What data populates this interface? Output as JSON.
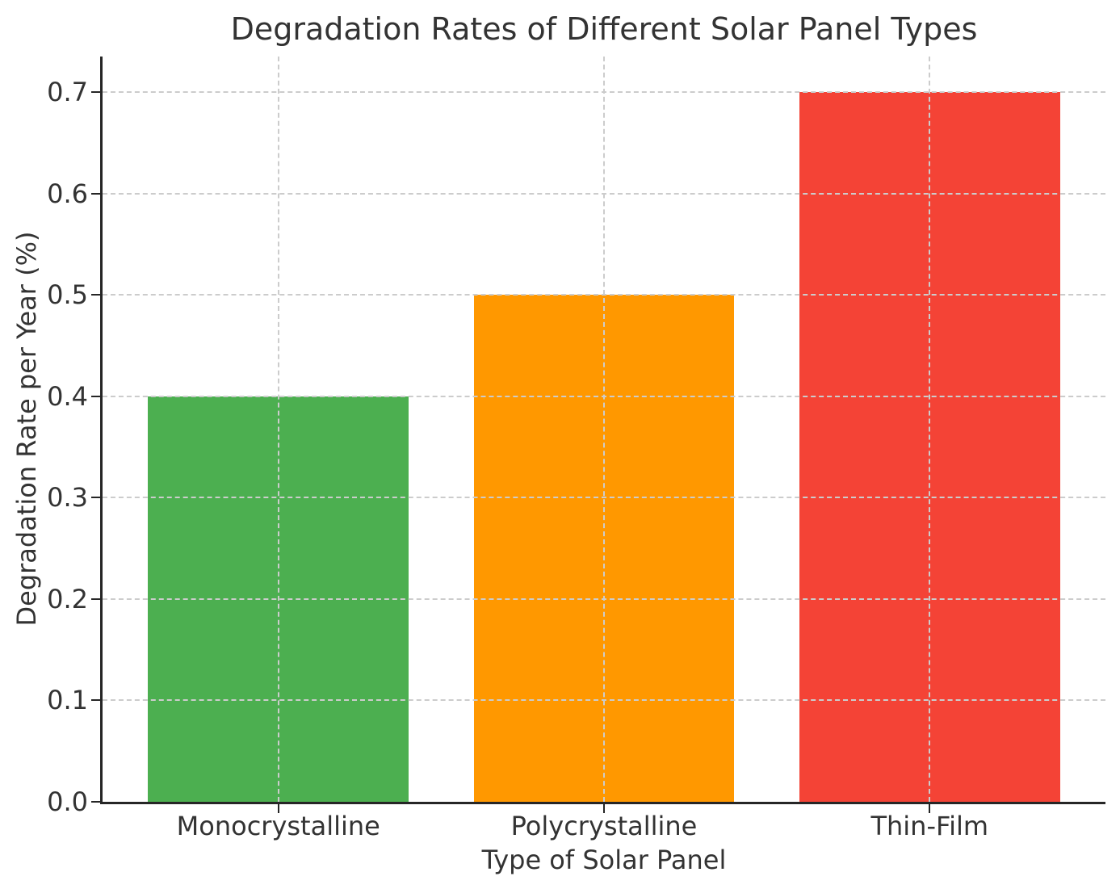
{
  "chart_data": {
    "type": "bar",
    "title": "Degradation Rates of Different Solar Panel Types",
    "xlabel": "Type of Solar Panel",
    "ylabel": "Degradation Rate per Year (%)",
    "categories": [
      "Monocrystalline",
      "Polycrystalline",
      "Thin-Film"
    ],
    "values": [
      0.4,
      0.5,
      0.7
    ],
    "bar_colors": [
      "#4CAF50",
      "#FF9800",
      "#F44336"
    ],
    "ytick_labels": [
      "0.0",
      "0.1",
      "0.2",
      "0.3",
      "0.4",
      "0.5",
      "0.6",
      "0.7"
    ],
    "ylim": [
      0,
      0.735
    ],
    "grid": "dashed",
    "grid_color": "#cccccc",
    "axis_color": "#262626",
    "text_color": "#333333",
    "legend": "none"
  }
}
